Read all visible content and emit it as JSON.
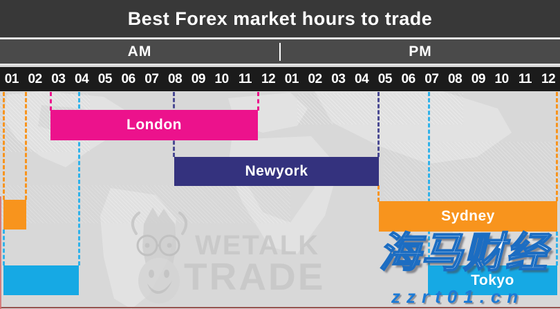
{
  "title": "Best Forex market hours to trade",
  "axis": {
    "am_label": "AM",
    "pm_label": "PM",
    "hour_ticks": [
      "01",
      "02",
      "03",
      "04",
      "05",
      "06",
      "07",
      "08",
      "09",
      "10",
      "11",
      "12",
      "01",
      "02",
      "03",
      "04",
      "05",
      "06",
      "07",
      "08",
      "09",
      "10",
      "11",
      "12"
    ]
  },
  "chart_data": {
    "type": "bar",
    "subtype": "timeline-gantt-market-hours",
    "title": "Best Forex market hours to trade",
    "x_axis": {
      "groups": [
        "AM",
        "PM"
      ],
      "ticks": [
        "01",
        "02",
        "03",
        "04",
        "05",
        "06",
        "07",
        "08",
        "09",
        "10",
        "11",
        "12",
        "01",
        "02",
        "03",
        "04",
        "05",
        "06",
        "07",
        "08",
        "09",
        "10",
        "11",
        "12"
      ],
      "range_hours": [
        0,
        24
      ]
    },
    "legend_position": "labels-inside-bars",
    "grid": "dashed-session-boundary-lines",
    "sessions": [
      {
        "name": "London",
        "color": "#ec128c",
        "start": "03:00 AM",
        "end": "11:00 AM",
        "duration_hours": 8,
        "wraps_midnight": false
      },
      {
        "name": "Newyork",
        "color": "#34327e",
        "start": "08:00 AM",
        "end": "05:00 PM",
        "duration_hours": 9,
        "wraps_midnight": false
      },
      {
        "name": "Sydney",
        "color": "#f8941d",
        "start": "05:00 PM",
        "end": "01:00 AM",
        "duration_hours": 8,
        "wraps_midnight": true
      },
      {
        "name": "Tokyo",
        "color": "#16a9e4",
        "start": "07:00 PM",
        "end": "04:00 AM",
        "duration_hours": 9,
        "wraps_midnight": true
      }
    ]
  },
  "watermarks": {
    "brand_line1": "WETALK",
    "brand_line2": "TRADE",
    "cn_text": "海马财经",
    "site_text": "zzrt01.cn"
  },
  "colors": {
    "header_bg": "#383838",
    "ampm_bg": "#4a4a4a",
    "hours_bg": "#1b1b1b",
    "canvas_bg": "#d8d8d8",
    "london": "#ec128c",
    "newyork": "#34327e",
    "sydney": "#f8941d",
    "tokyo": "#16a9e4",
    "bottom_edge_line": "#96524e",
    "site_text_color": "#1b7ad6"
  }
}
